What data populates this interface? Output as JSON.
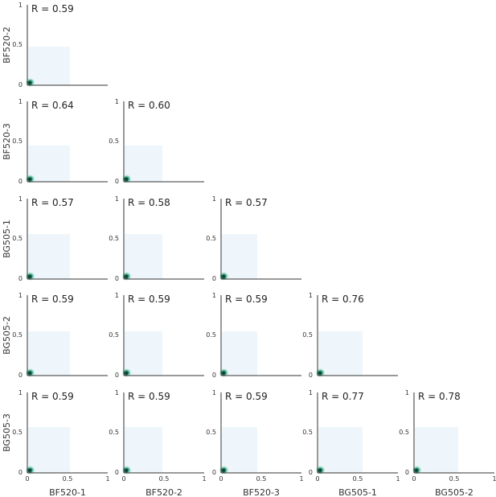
{
  "chart_data": {
    "type": "heatmap",
    "layout": "lower-triangular pairwise correlation grid",
    "x_labels": [
      "BF520-1",
      "BF520-2",
      "BF520-3",
      "BG505-1",
      "BG505-2"
    ],
    "y_labels": [
      "BF520-2",
      "BF520-3",
      "BG505-1",
      "BG505-2",
      "BG505-3"
    ],
    "xlim": [
      0,
      1
    ],
    "ylim": [
      0,
      1
    ],
    "x_ticks": [
      "0",
      "0.5",
      "1"
    ],
    "y_ticks": [
      "0",
      "0.5",
      "1"
    ],
    "grid": false,
    "density_color": "#1a9e75",
    "background_color": "#eef6fb",
    "panels": [
      {
        "row": 0,
        "col": 0,
        "r_label": "R = 0.59",
        "extent": [
          0.53,
          0.48
        ]
      },
      {
        "row": 1,
        "col": 0,
        "r_label": "R = 0.64",
        "extent": [
          0.53,
          0.45
        ]
      },
      {
        "row": 1,
        "col": 1,
        "r_label": "R = 0.60",
        "extent": [
          0.48,
          0.45
        ]
      },
      {
        "row": 2,
        "col": 0,
        "r_label": "R = 0.57",
        "extent": [
          0.53,
          0.56
        ]
      },
      {
        "row": 2,
        "col": 1,
        "r_label": "R = 0.58",
        "extent": [
          0.48,
          0.56
        ]
      },
      {
        "row": 2,
        "col": 2,
        "r_label": "R = 0.57",
        "extent": [
          0.45,
          0.56
        ]
      },
      {
        "row": 3,
        "col": 0,
        "r_label": "R = 0.59",
        "extent": [
          0.53,
          0.55
        ]
      },
      {
        "row": 3,
        "col": 1,
        "r_label": "R = 0.59",
        "extent": [
          0.48,
          0.55
        ]
      },
      {
        "row": 3,
        "col": 2,
        "r_label": "R = 0.59",
        "extent": [
          0.45,
          0.55
        ]
      },
      {
        "row": 3,
        "col": 3,
        "r_label": "R = 0.76",
        "extent": [
          0.56,
          0.55
        ]
      },
      {
        "row": 4,
        "col": 0,
        "r_label": "R = 0.59",
        "extent": [
          0.53,
          0.57
        ]
      },
      {
        "row": 4,
        "col": 1,
        "r_label": "R = 0.59",
        "extent": [
          0.48,
          0.57
        ]
      },
      {
        "row": 4,
        "col": 2,
        "r_label": "R = 0.59",
        "extent": [
          0.45,
          0.57
        ]
      },
      {
        "row": 4,
        "col": 3,
        "r_label": "R = 0.77",
        "extent": [
          0.56,
          0.57
        ]
      },
      {
        "row": 4,
        "col": 4,
        "r_label": "R = 0.78",
        "extent": [
          0.55,
          0.57
        ]
      }
    ]
  }
}
